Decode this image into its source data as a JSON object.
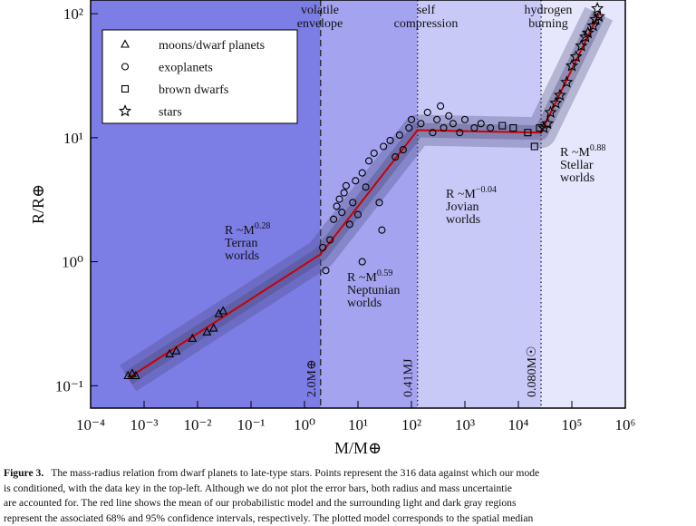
{
  "chart_data": {
    "type": "scatter",
    "xlabel": "M/M⊕",
    "ylabel": "R/R⊕",
    "log_x": true,
    "log_y": true,
    "xlim": [
      0.0001,
      1000000
    ],
    "ylim": [
      0.066,
      129
    ],
    "xticks": [
      {
        "value": 0.0001,
        "label": "10⁻⁴"
      },
      {
        "value": 0.001,
        "label": "10⁻³"
      },
      {
        "value": 0.01,
        "label": "10⁻²"
      },
      {
        "value": 0.1,
        "label": "10⁻¹"
      },
      {
        "value": 1,
        "label": "10⁰"
      },
      {
        "value": 10,
        "label": "10¹"
      },
      {
        "value": 100,
        "label": "10²"
      },
      {
        "value": 1000,
        "label": "10³"
      },
      {
        "value": 10000,
        "label": "10⁴"
      },
      {
        "value": 100000,
        "label": "10⁵"
      },
      {
        "value": 1000000,
        "label": "10⁶"
      }
    ],
    "yticks": [
      {
        "value": 0.1,
        "label": "10⁻¹"
      },
      {
        "value": 1,
        "label": "10⁰"
      },
      {
        "value": 10,
        "label": "10¹"
      },
      {
        "value": 100,
        "label": "10²"
      }
    ],
    "legend": "upper left",
    "series": [
      {
        "name": "moons/dwarf planets",
        "marker": "triangle",
        "color": "#000000",
        "x": [
          0.0005,
          0.0006,
          0.0007,
          0.003,
          0.004,
          0.008,
          0.015,
          0.02,
          0.025,
          0.03
        ],
        "values": [
          0.12,
          0.125,
          0.12,
          0.18,
          0.19,
          0.24,
          0.27,
          0.29,
          0.38,
          0.4
        ]
      },
      {
        "name": "exoplanets",
        "marker": "circle",
        "color": "#000000",
        "x": [
          2.2,
          2.5,
          3,
          3.5,
          4,
          4.5,
          5,
          5.5,
          6,
          7,
          8,
          9,
          10,
          12,
          12,
          14,
          16,
          20,
          25,
          28,
          30,
          40,
          50,
          60,
          70,
          90,
          100,
          150,
          200,
          250,
          300,
          350,
          400,
          500,
          600,
          800,
          1000,
          1500,
          2000,
          3000
        ],
        "values": [
          1.3,
          0.85,
          1.5,
          2.2,
          2.8,
          3.2,
          2.5,
          3.6,
          4.1,
          2.0,
          3.0,
          4.5,
          2.4,
          5.2,
          1.0,
          4.0,
          6.5,
          7.5,
          3.0,
          1.8,
          8.5,
          9.5,
          7.0,
          10.5,
          8.0,
          12,
          14,
          13,
          16,
          11,
          14,
          18,
          12,
          15,
          13,
          11,
          14,
          12,
          13,
          12
        ]
      },
      {
        "name": "brown dwarfs",
        "marker": "square",
        "color": "#000000",
        "x": [
          5000,
          8000,
          15000,
          20000,
          25000
        ],
        "values": [
          12.5,
          12,
          11,
          8.5,
          12
        ]
      },
      {
        "name": "stars",
        "marker": "star",
        "color": "#000000",
        "x": [
          30000,
          35000,
          40000,
          50000,
          60000,
          80000,
          100000,
          120000,
          150000,
          180000,
          200000,
          250000,
          280000,
          300000,
          320000
        ],
        "values": [
          12,
          13,
          16,
          19,
          22,
          28,
          38,
          45,
          55,
          65,
          70,
          80,
          90,
          110,
          95
        ]
      }
    ],
    "model": {
      "color": "#cc0000",
      "x": [
        0.0005,
        2,
        130,
        26600,
        320000
      ],
      "values": [
        0.115,
        1.15,
        11.5,
        11,
        100
      ]
    },
    "transitions": [
      {
        "value": 2,
        "label": "2.0M⊕",
        "style": "dashed"
      },
      {
        "value": 130,
        "label": "0.41MJ",
        "style": "dotted"
      },
      {
        "value": 26600,
        "label": "0.080M☉",
        "style": "dotted"
      }
    ],
    "region_headers": [
      [
        "volatile",
        "envelope"
      ],
      [
        "self",
        "compression"
      ],
      [
        "hydrogen",
        "burning"
      ]
    ],
    "regimes": [
      {
        "text": "R ~M",
        "exponent": "0.28",
        "label": [
          "Terran",
          "worlds"
        ]
      },
      {
        "text": "R ~M",
        "exponent": "0.59",
        "label": [
          "Neptunian",
          "worlds"
        ]
      },
      {
        "text": "R ~M",
        "exponent": "−0.04",
        "label": [
          "Jovian",
          "worlds"
        ]
      },
      {
        "text": "R ~M",
        "exponent": "0.88",
        "label": [
          "Stellar",
          "worlds"
        ]
      }
    ]
  },
  "caption": {
    "label": "Figure 3.",
    "lines": [
      "The mass-radius relation from dwarf planets to late-type stars. Points represent the 316 data against which our mode",
      "is conditioned, with the data key in the top-left. Although we do not plot the error bars, both radius and mass uncertaintie",
      "are accounted for. The red line shows the mean of our probabilistic model and the surrounding light and dark gray regions",
      "represent the associated 68% and 95% confidence intervals, respectively. The plotted model corresponds to the spatial median"
    ]
  }
}
